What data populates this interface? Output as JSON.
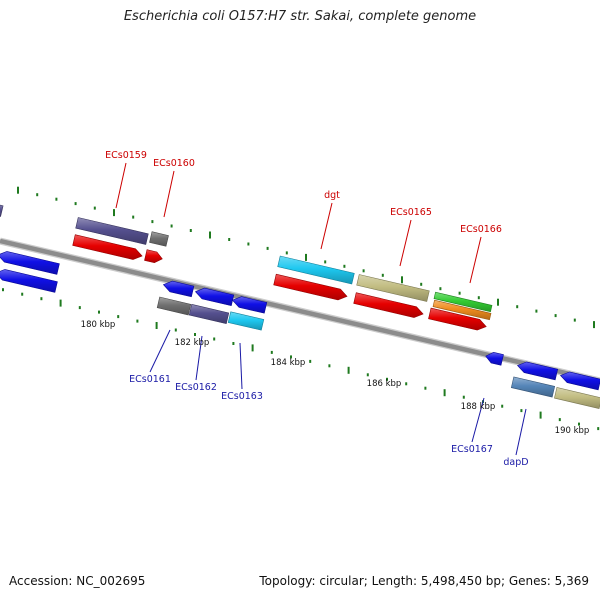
{
  "title": "Escherichia coli O157:H7 str. Sakai, complete genome",
  "footer": {
    "accession_label": "Accession: NC_002695",
    "topology_label": "Topology: circular; Length: 5,498,450 bp; Genes: 5,369"
  },
  "scale_labels": [
    "180 kbp",
    "182 kbp",
    "184 kbp",
    "186 kbp",
    "188 kbp",
    "190 kbp"
  ],
  "labels_forward": [
    "ECs0159",
    "ECs0160",
    "dgt",
    "ECs0165",
    "ECs0166"
  ],
  "labels_reverse": [
    "ECs0161",
    "ECs0162",
    "ECs0163",
    "ECs0167",
    "dapD"
  ],
  "colors": {
    "backbone": "#8c8c8c",
    "tick_green": "#1f7a1f",
    "label_forward": "#cc0000",
    "label_reverse": "#1a1aa6",
    "cds_red": "#e60000",
    "cds_blue": "#1010e6",
    "slate_blue": "#55508f",
    "cyan": "#1ec8f0",
    "khaki": "#c2bd82",
    "gray": "#707070",
    "green": "#33cc33",
    "orange": "#f08c1e",
    "steel_blue": "#5585b8"
  }
}
